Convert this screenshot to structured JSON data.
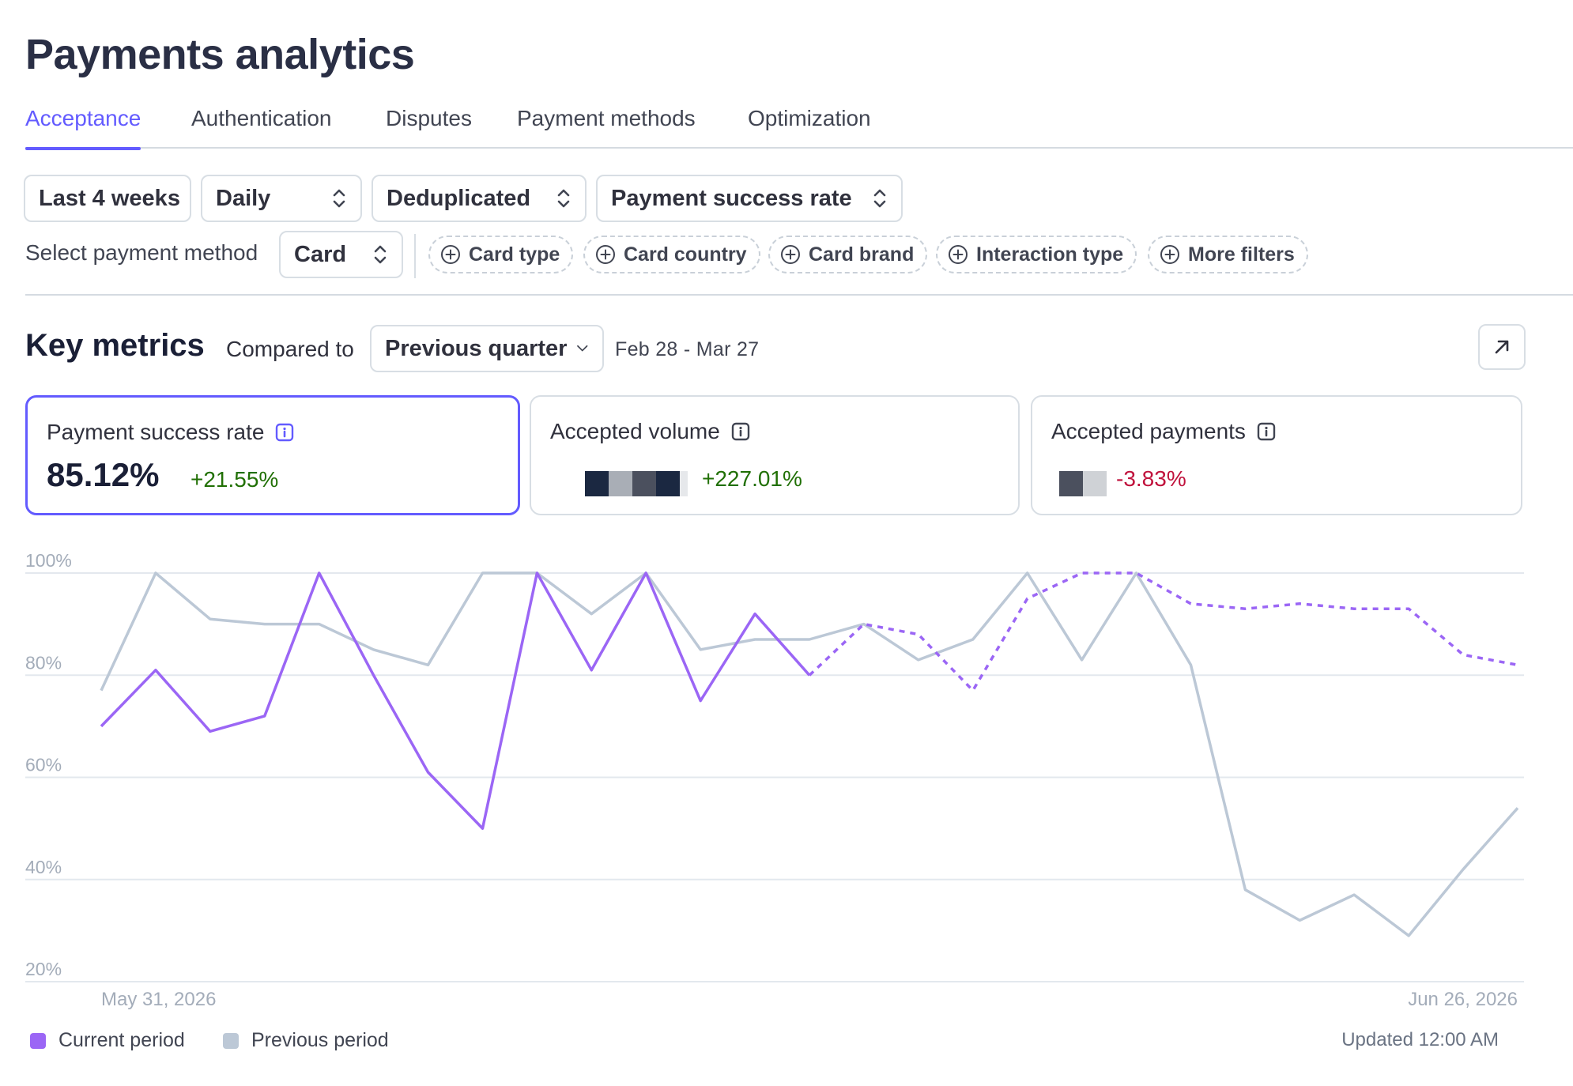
{
  "page": {
    "title": "Payments analytics"
  },
  "tabs": [
    {
      "label": "Acceptance",
      "active": true
    },
    {
      "label": "Authentication",
      "active": false
    },
    {
      "label": "Disputes",
      "active": false
    },
    {
      "label": "Payment methods",
      "active": false
    },
    {
      "label": "Optimization",
      "active": false
    }
  ],
  "filters": {
    "range": "Last 4 weeks",
    "interval": "Daily",
    "dedup": "Deduplicated",
    "metric": "Payment success rate",
    "payment_method_label": "Select payment method",
    "payment_method": "Card",
    "chips": [
      "Card type",
      "Card country",
      "Card brand",
      "Interaction type",
      "More filters"
    ]
  },
  "key_metrics": {
    "title": "Key metrics",
    "compared_label": "Compared to",
    "compared_value": "Previous quarter",
    "date_range": "Feb 28 - Mar 27"
  },
  "cards": [
    {
      "title": "Payment success rate",
      "value": "85.12%",
      "delta": "+21.55%",
      "trend": "up",
      "selected": true
    },
    {
      "title": "Accepted volume",
      "value": "",
      "delta": "+227.01%",
      "trend": "up",
      "selected": false
    },
    {
      "title": "Accepted payments",
      "value": "",
      "delta": "-3.83%",
      "trend": "down",
      "selected": false
    }
  ],
  "colors": {
    "accent": "#635bff",
    "current_series": "#9b66f5",
    "previous_series": "#bcc8d6",
    "positive": "#217005",
    "negative": "#c0123c",
    "redaction_dark": "#1b2841",
    "redaction_mid": "#4b505e",
    "redaction_light": "#a9aeb6",
    "redaction_lighter": "#cfd2d6"
  },
  "chart_data": {
    "type": "line",
    "x": [
      "May 31, 2026",
      "Jun 1, 2026",
      "Jun 2, 2026",
      "Jun 3, 2026",
      "Jun 4, 2026",
      "Jun 5, 2026",
      "Jun 6, 2026",
      "Jun 7, 2026",
      "Jun 8, 2026",
      "Jun 9, 2026",
      "Jun 10, 2026",
      "Jun 11, 2026",
      "Jun 12, 2026",
      "Jun 13, 2026",
      "Jun 14, 2026",
      "Jun 15, 2026",
      "Jun 16, 2026",
      "Jun 17, 2026",
      "Jun 18, 2026",
      "Jun 19, 2026",
      "Jun 20, 2026",
      "Jun 21, 2026",
      "Jun 22, 2026",
      "Jun 23, 2026",
      "Jun 24, 2026",
      "Jun 25, 2026",
      "Jun 26, 2026"
    ],
    "x_tick_labels": [
      "May 31, 2026",
      "Jun 26, 2026"
    ],
    "y_ticks": [
      "100%",
      "80%",
      "60%",
      "40%",
      "20%"
    ],
    "ylim": [
      20,
      100
    ],
    "grid": true,
    "legend_position": "bottom-left",
    "series": [
      {
        "name": "Current period",
        "solid_until_index": 13,
        "values": [
          70,
          81,
          69,
          72,
          100,
          80,
          61,
          50,
          100,
          81,
          100,
          75,
          92,
          80,
          90,
          88,
          77,
          95,
          100,
          100,
          94,
          93,
          94,
          93,
          93,
          84,
          82
        ]
      },
      {
        "name": "Previous period",
        "values": [
          77,
          100,
          91,
          90,
          90,
          85,
          82,
          100,
          100,
          92,
          100,
          85,
          87,
          87,
          90,
          83,
          87,
          100,
          83,
          100,
          82,
          38,
          32,
          37,
          29,
          42,
          54
        ]
      }
    ]
  },
  "updated": "Updated 12:00 AM"
}
